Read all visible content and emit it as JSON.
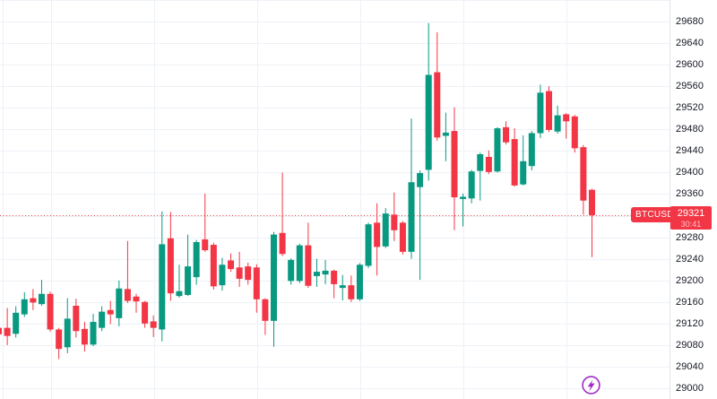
{
  "chart_data": {
    "type": "candlestick",
    "symbol": "BTCUSD",
    "last_price": 29321,
    "last_price_str": "29321",
    "countdown": "30:41",
    "title": "",
    "xlabel": "",
    "ylabel": "",
    "grid": true,
    "legend_position": "none",
    "ylim": [
      28995,
      29722
    ],
    "price_ticks": [
      29680,
      29640,
      29600,
      29560,
      29520,
      29480,
      29440,
      29400,
      29360,
      29320,
      29280,
      29240,
      29200,
      29160,
      29120,
      29080,
      29040,
      29000
    ],
    "grid_prices": [
      29720,
      29680,
      29640,
      29600,
      29560,
      29520,
      29480,
      29440,
      29400,
      29360,
      29320,
      29280,
      29240,
      29200,
      29160,
      29120,
      29080,
      29040,
      29000
    ],
    "candles_format": "[open, high, low, close]",
    "candles": [
      [
        29112,
        29115,
        29091,
        29100
      ],
      [
        29112,
        29149,
        29080,
        29097
      ],
      [
        29101,
        29152,
        29094,
        29140
      ],
      [
        29137,
        29178,
        29132,
        29165
      ],
      [
        29167,
        29184,
        29145,
        29159
      ],
      [
        29156,
        29201,
        29153,
        29175
      ],
      [
        29175,
        29179,
        29105,
        29109
      ],
      [
        29109,
        29112,
        29054,
        29073
      ],
      [
        29076,
        29167,
        29065,
        29129
      ],
      [
        29153,
        29166,
        29094,
        29106
      ],
      [
        29110,
        29123,
        29068,
        29081
      ],
      [
        29081,
        29138,
        29078,
        29123
      ],
      [
        29112,
        29152,
        29106,
        29142
      ],
      [
        29145,
        29162,
        29119,
        29137
      ],
      [
        29130,
        29200,
        29115,
        29185
      ],
      [
        29184,
        29273,
        29158,
        29162
      ],
      [
        29170,
        29175,
        29140,
        29161
      ],
      [
        29160,
        29162,
        29112,
        29120
      ],
      [
        29124,
        29135,
        29095,
        29112
      ],
      [
        29109,
        29328,
        29087,
        29267
      ],
      [
        29278,
        29327,
        29162,
        29176
      ],
      [
        29171,
        29229,
        29168,
        29180
      ],
      [
        29173,
        29285,
        29171,
        29226
      ],
      [
        29206,
        29275,
        29192,
        29271
      ],
      [
        29276,
        29361,
        29253,
        29256
      ],
      [
        29266,
        29270,
        29183,
        29189
      ],
      [
        29191,
        29242,
        29181,
        29229
      ],
      [
        29237,
        29250,
        29216,
        29221
      ],
      [
        29224,
        29253,
        29188,
        29203
      ],
      [
        29226,
        29233,
        29192,
        29201
      ],
      [
        29224,
        29230,
        29140,
        29165
      ],
      [
        29165,
        29167,
        29099,
        29125
      ],
      [
        29125,
        29290,
        29077,
        29285
      ],
      [
        29288,
        29400,
        29245,
        29249
      ],
      [
        29199,
        29241,
        29192,
        29238
      ],
      [
        29199,
        29268,
        29195,
        29265
      ],
      [
        29265,
        29307,
        29186,
        29190
      ],
      [
        29208,
        29240,
        29188,
        29216
      ],
      [
        29211,
        29238,
        29193,
        29218
      ],
      [
        29218,
        29220,
        29167,
        29193
      ],
      [
        29186,
        29210,
        29163,
        29191
      ],
      [
        29191,
        29209,
        29160,
        29165
      ],
      [
        29165,
        29232,
        29162,
        29229
      ],
      [
        29227,
        29307,
        29223,
        29304
      ],
      [
        29307,
        29343,
        29209,
        29262
      ],
      [
        29263,
        29334,
        29260,
        29324
      ],
      [
        29322,
        29363,
        29273,
        29293
      ],
      [
        29307,
        29310,
        29248,
        29253
      ],
      [
        29253,
        29500,
        29240,
        29382
      ],
      [
        29373,
        29404,
        29201,
        29399
      ],
      [
        29405,
        29677,
        29385,
        29581
      ],
      [
        29586,
        29660,
        29459,
        29465
      ],
      [
        29468,
        29511,
        29421,
        29474
      ],
      [
        29477,
        29521,
        29293,
        29354
      ],
      [
        29351,
        29361,
        29300,
        29355
      ],
      [
        29352,
        29405,
        29343,
        29402
      ],
      [
        29403,
        29437,
        29348,
        29434
      ],
      [
        29429,
        29441,
        29397,
        29401
      ],
      [
        29402,
        29484,
        29400,
        29482
      ],
      [
        29484,
        29495,
        29452,
        29456
      ],
      [
        29462,
        29482,
        29374,
        29376
      ],
      [
        29378,
        29469,
        29376,
        29421
      ],
      [
        29412,
        29477,
        29404,
        29473
      ],
      [
        29473,
        29563,
        29464,
        29548
      ],
      [
        29551,
        29560,
        29475,
        29479
      ],
      [
        29476,
        29524,
        29472,
        29506
      ],
      [
        29508,
        29510,
        29463,
        29495
      ],
      [
        29504,
        29507,
        29437,
        29445
      ],
      [
        29447,
        29451,
        29322,
        29348
      ],
      [
        29368,
        29370,
        29243,
        29321
      ]
    ]
  },
  "colors": {
    "up": "#089981",
    "down": "#f23645",
    "last_line": "#f23645",
    "grid": "#eef1f7",
    "axis_text": "#131722",
    "axis_border": "#e0e3eb",
    "flag_bg": "#f23645",
    "flag_text": "#ffffff",
    "countdown_text": "#ffc1c7",
    "flash_icon": "#a22bc8",
    "background": "#ffffff"
  },
  "icons": {
    "flash": "lightning-bolt-in-circle"
  }
}
